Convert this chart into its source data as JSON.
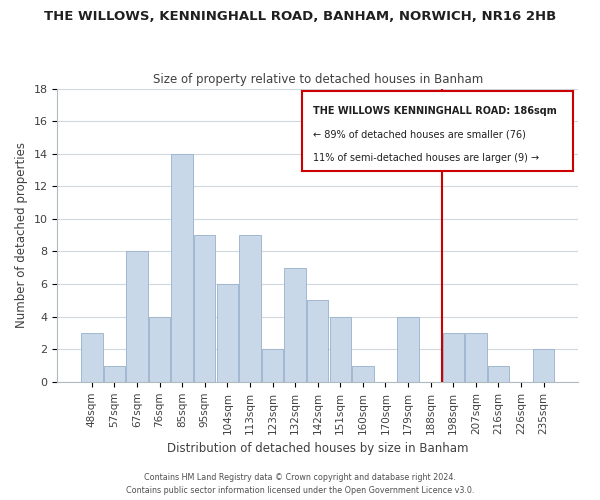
{
  "title": "THE WILLOWS, KENNINGHALL ROAD, BANHAM, NORWICH, NR16 2HB",
  "subtitle": "Size of property relative to detached houses in Banham",
  "xlabel": "Distribution of detached houses by size in Banham",
  "ylabel": "Number of detached properties",
  "bar_color": "#c8d8e8",
  "bar_edgecolor": "#a0b8d0",
  "categories": [
    "48sqm",
    "57sqm",
    "67sqm",
    "76sqm",
    "85sqm",
    "95sqm",
    "104sqm",
    "113sqm",
    "123sqm",
    "132sqm",
    "142sqm",
    "151sqm",
    "160sqm",
    "170sqm",
    "179sqm",
    "188sqm",
    "198sqm",
    "207sqm",
    "216sqm",
    "226sqm",
    "235sqm"
  ],
  "values": [
    3,
    1,
    8,
    4,
    14,
    9,
    6,
    9,
    2,
    7,
    5,
    4,
    1,
    0,
    4,
    0,
    3,
    3,
    1,
    0,
    2
  ],
  "vline_x": 15.5,
  "vline_color": "#cc0000",
  "ylim": [
    0,
    18
  ],
  "yticks": [
    0,
    2,
    4,
    6,
    8,
    10,
    12,
    14,
    16,
    18
  ],
  "legend_title": "THE WILLOWS KENNINGHALL ROAD: 186sqm",
  "legend_line1": "← 89% of detached houses are smaller (76)",
  "legend_line2": "11% of semi-detached houses are larger (9) →",
  "footer1": "Contains HM Land Registry data © Crown copyright and database right 2024.",
  "footer2": "Contains public sector information licensed under the Open Government Licence v3.0.",
  "background_color": "#ffffff",
  "grid_color": "#d0d8e0"
}
